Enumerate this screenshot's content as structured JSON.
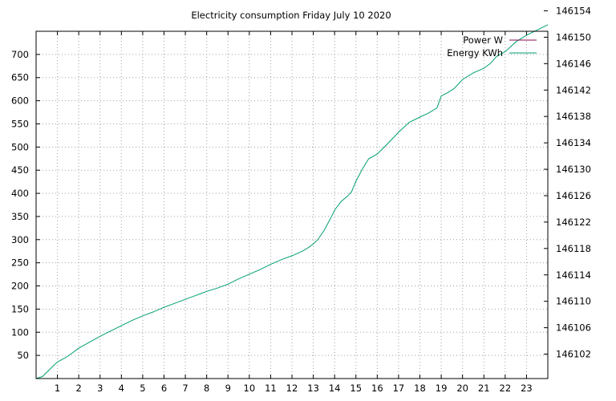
{
  "chart_data": {
    "type": "line",
    "title": "Electricity consumption Friday July 10 2020",
    "xlabel": "",
    "ylabel": "",
    "y2label": "",
    "x_ticks": [
      1,
      2,
      3,
      4,
      5,
      6,
      7,
      8,
      9,
      10,
      11,
      12,
      13,
      14,
      15,
      16,
      17,
      18,
      19,
      20,
      21,
      22,
      23
    ],
    "x_tick_labels": [
      "1",
      "2",
      "3",
      "4",
      "5",
      "6",
      "7",
      "8",
      "9",
      "10",
      "11",
      "12",
      "13",
      "14",
      "15",
      "16",
      "17",
      "18",
      "19",
      "20",
      "21",
      "22",
      "23"
    ],
    "xlim": [
      0,
      24
    ],
    "y_ticks": [
      50,
      100,
      150,
      200,
      250,
      300,
      350,
      400,
      450,
      500,
      550,
      600,
      650,
      700
    ],
    "y_tick_labels": [
      "50",
      "100",
      "150",
      "200",
      "250",
      "300",
      "350",
      "400",
      "450",
      "500",
      "550",
      "600",
      "650",
      "700"
    ],
    "ylim": [
      0,
      750
    ],
    "y2_ticks": [
      146102,
      146106,
      146110,
      146114,
      146118,
      146122,
      146126,
      146130,
      146134,
      146138,
      146142,
      146146,
      146150,
      146154
    ],
    "y2_tick_labels": [
      "146102",
      "146106",
      "146110",
      "146114",
      "146118",
      "146122",
      "146126",
      "146130",
      "146134",
      "146138",
      "146142",
      "146146",
      "146150",
      "146154"
    ],
    "y2lim": [
      146098.3,
      146150.9
    ],
    "grid": true,
    "legend_position": "top-right",
    "series": [
      {
        "name": "Power W",
        "color": "#8b0a50",
        "axis": "y",
        "x": [],
        "y": []
      },
      {
        "name": "Energy KWh",
        "color": "#009e73",
        "axis": "y2",
        "x": [
          0,
          0.3,
          0.8,
          1.0,
          1.5,
          2.0,
          2.5,
          3.0,
          3.5,
          4.0,
          4.5,
          5.0,
          5.5,
          6.0,
          6.5,
          7.0,
          7.5,
          8.0,
          8.5,
          9.0,
          9.5,
          10.0,
          10.5,
          11.0,
          11.5,
          12.0,
          12.5,
          12.8,
          13.0,
          13.2,
          13.5,
          13.8,
          14.0,
          14.3,
          14.6,
          14.8,
          15.0,
          15.3,
          15.6,
          16.0,
          16.5,
          17.0,
          17.5,
          18.0,
          18.4,
          18.8,
          19.0,
          19.3,
          19.6,
          20.0,
          20.5,
          21.0,
          21.3,
          21.6,
          22.0,
          22.5,
          23.0,
          23.5,
          24.0
        ],
        "y": [
          146098.3,
          146098.6,
          146100.2,
          146100.8,
          146101.7,
          146102.9,
          146103.8,
          146104.7,
          146105.5,
          146106.3,
          146107.1,
          146107.8,
          146108.4,
          146109.1,
          146109.7,
          146110.3,
          146110.9,
          146111.5,
          146112.0,
          146112.6,
          146113.4,
          146114.1,
          146114.8,
          146115.6,
          146116.3,
          146116.9,
          146117.6,
          146118.2,
          146118.7,
          146119.3,
          146120.7,
          146122.5,
          146123.8,
          146125.1,
          146125.9,
          146126.6,
          146128.2,
          146130.0,
          146131.6,
          146132.3,
          146133.9,
          146135.6,
          146137.1,
          146137.9,
          146138.5,
          146139.3,
          146141.1,
          146141.6,
          146142.2,
          146143.6,
          146144.6,
          146145.3,
          146146.0,
          146147.1,
          146147.8,
          146149.3,
          146150.3,
          146151.1,
          146151.9
        ]
      }
    ]
  }
}
